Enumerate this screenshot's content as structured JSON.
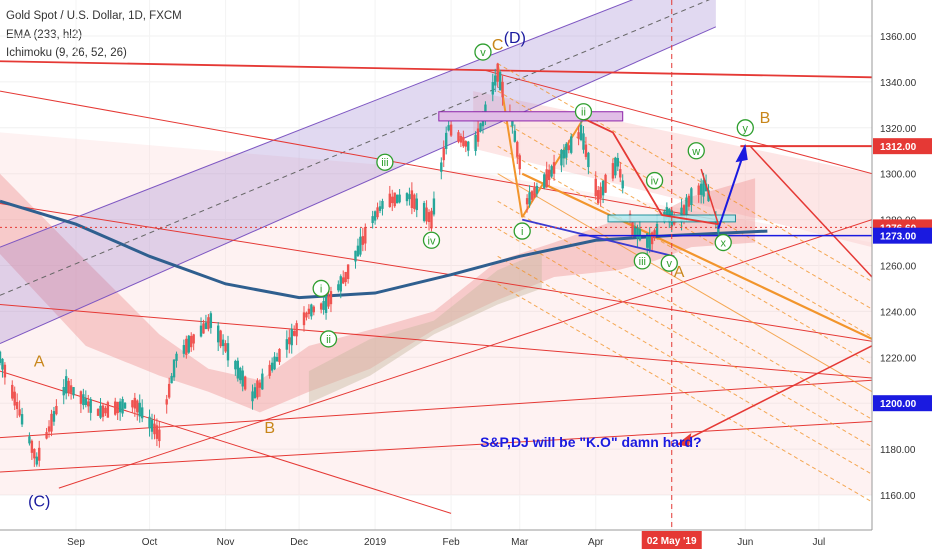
{
  "header": {
    "symbol": "Gold Spot / U.S. Dollar, 1D, FXCM",
    "indicator1": "EMA (233, hl2)",
    "indicator2": "Ichimoku (9, 26, 52, 26)"
  },
  "colors": {
    "bull": "#26a69a",
    "bear": "#ef5350",
    "ema": "#2f5f8f",
    "red_line": "#e53935",
    "orange": "#f2952c",
    "purple": "#7e57c2",
    "blue": "#1a1ae0",
    "wave_green": "#2e9e2e",
    "wave_orange": "#c8861a"
  },
  "chart_data": {
    "type": "candlestick",
    "title": "Gold Spot / U.S. Dollar, 1D, FXCM",
    "x_ticks": [
      "Sep",
      "Oct",
      "Nov",
      "Dec",
      "2019",
      "Feb",
      "Mar",
      "Apr",
      "02 May '19",
      "Jun",
      "Jul"
    ],
    "y_ticks": [
      "1360.00",
      "1340.00",
      "1320.00",
      "1300.00",
      "1280.00",
      "1260.00",
      "1240.00",
      "1220.00",
      "1200.00",
      "1180.00",
      "1160.00"
    ],
    "ylim": [
      1152,
      1380
    ],
    "price_labels": [
      {
        "value": "1312.00",
        "price": 1312,
        "color": "#e53935"
      },
      {
        "value": "1276.60",
        "price": 1276.6,
        "color": "#e53935"
      },
      {
        "value": "1273.00",
        "price": 1273,
        "color": "#1a1ae0"
      },
      {
        "value": "1200.00",
        "price": 1200,
        "color": "#1a1ae0"
      }
    ],
    "wave_labels": {
      "circled": [
        {
          "text": "v",
          "date": "2019-02-14",
          "price": 1353
        },
        {
          "text": "iii",
          "date": "2019-01-05",
          "price": 1305
        },
        {
          "text": "iv",
          "date": "2019-01-24",
          "price": 1271
        },
        {
          "text": "i",
          "date": "2018-12-10",
          "price": 1250
        },
        {
          "text": "ii",
          "date": "2018-12-13",
          "price": 1228
        },
        {
          "text": "ii",
          "date": "2019-03-27",
          "price": 1327
        },
        {
          "text": "i",
          "date": "2019-03-02",
          "price": 1275
        },
        {
          "text": "iv",
          "date": "2019-04-25",
          "price": 1297
        },
        {
          "text": "iii",
          "date": "2019-04-20",
          "price": 1262
        },
        {
          "text": "v",
          "date": "2019-05-01",
          "price": 1261
        },
        {
          "text": "w",
          "date": "2019-05-12",
          "price": 1310
        },
        {
          "text": "x",
          "date": "2019-05-23",
          "price": 1270
        },
        {
          "text": "y",
          "date": "2019-06-01",
          "price": 1320
        }
      ],
      "plain": [
        {
          "text": "C",
          "date": "2019-02-20",
          "price": 1354,
          "color": "#c8861a"
        },
        {
          "text": "(D)",
          "date": "2019-02-27",
          "price": 1357,
          "color": "#1a1a9e"
        },
        {
          "text": "A",
          "date": "2018-08-17",
          "price": 1216,
          "color": "#c8861a"
        },
        {
          "text": "B",
          "date": "2018-11-19",
          "price": 1187,
          "color": "#c8861a"
        },
        {
          "text": "(C)",
          "date": "2018-08-17",
          "price": 1155,
          "color": "#1a1a9e"
        },
        {
          "text": "A",
          "date": "2019-05-05",
          "price": 1255,
          "color": "#c8861a"
        },
        {
          "text": "B",
          "date": "2019-06-09",
          "price": 1322,
          "color": "#c8861a"
        }
      ]
    },
    "annotation": "S&P,DJ will be \"K.O\" damn hard?"
  }
}
